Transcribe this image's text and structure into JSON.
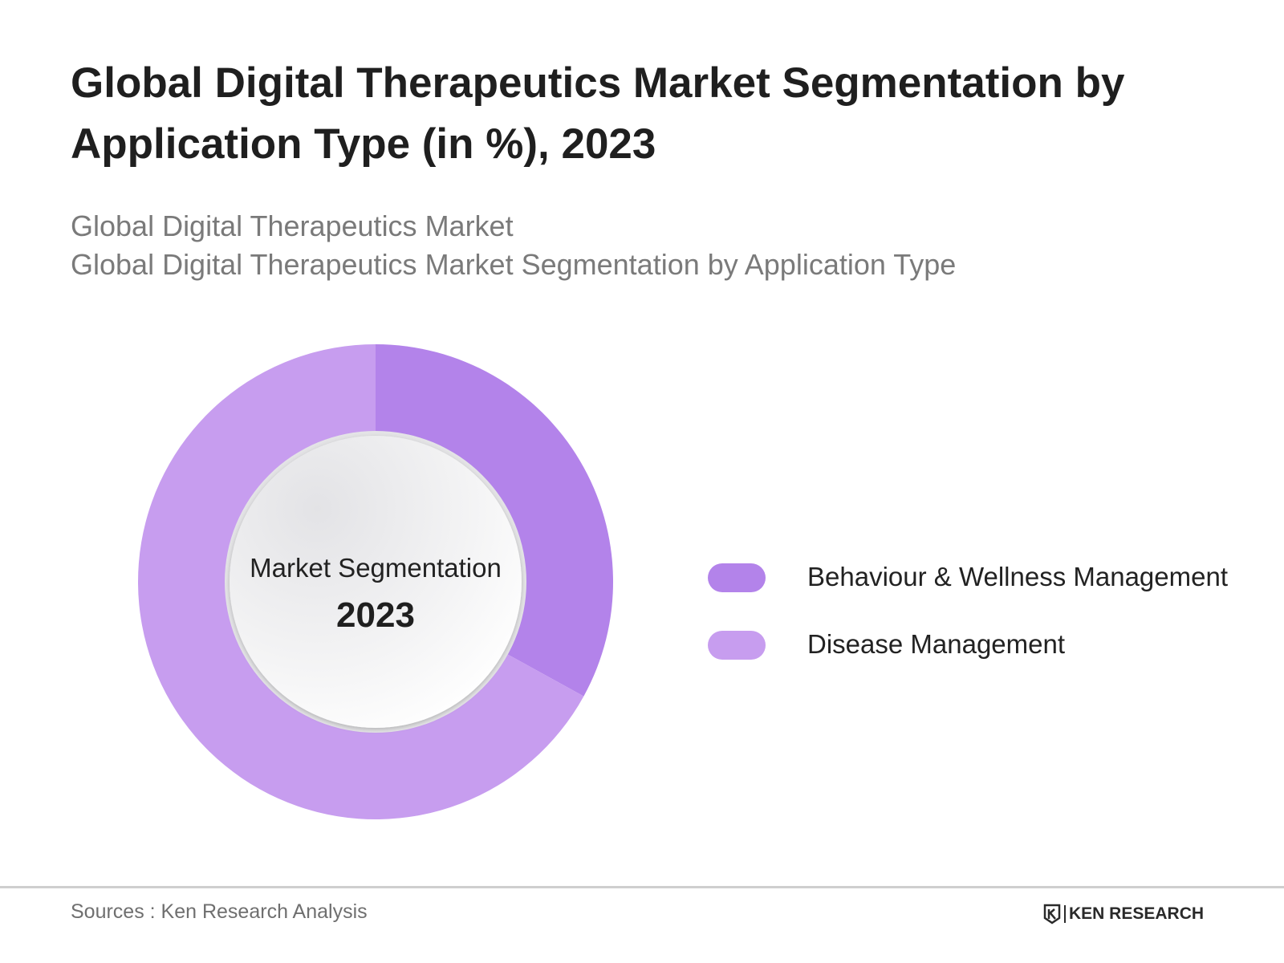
{
  "header": {
    "title": "Global Digital Therapeutics Market Segmentation by Application Type (in %), 2023",
    "subtitle_line1": "Global Digital Therapeutics Market",
    "subtitle_line2": "Global Digital Therapeutics Market Segmentation by Application Type"
  },
  "chart_data": {
    "type": "pie",
    "variant": "donut",
    "title": "Global Digital Therapeutics Market Segmentation by Application Type (in %), 2023",
    "center_label": "Market Segmentation",
    "center_value": "2023",
    "legend_position": "right",
    "categories": [
      "Behaviour & Wellness Management",
      "Disease Management"
    ],
    "values": [
      33,
      67
    ],
    "colors": [
      "#b383ea",
      "#c79def"
    ]
  },
  "footer": {
    "source": "Sources : Ken Research Analysis",
    "brand": "KEN RESEARCH"
  }
}
